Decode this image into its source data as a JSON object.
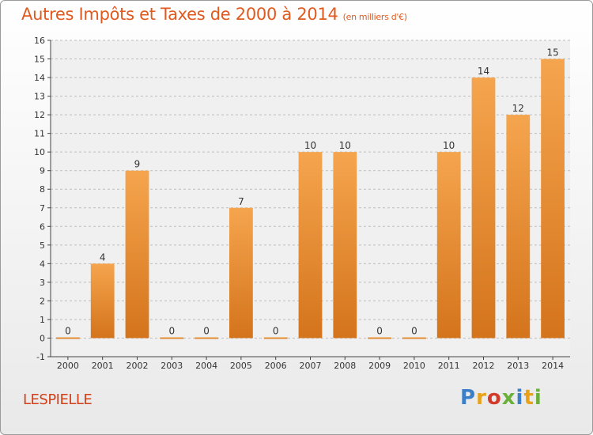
{
  "header": {
    "title": "Autres Impôts et Taxes de 2000 à 2014",
    "unit": "(en milliers d'€)"
  },
  "footer": {
    "commune": "LESPIELLE",
    "logo_letters": [
      "P",
      "r",
      "o",
      "x",
      "i",
      "t",
      "i"
    ]
  },
  "colors": {
    "title": "#e05a1f",
    "bar_top": "#f5a54e",
    "bar_bottom": "#d4741c",
    "grid": "#bdbdbd"
  },
  "chart_data": {
    "type": "bar",
    "categories": [
      "2000",
      "2001",
      "2002",
      "2003",
      "2004",
      "2005",
      "2006",
      "2007",
      "2008",
      "2009",
      "2010",
      "2011",
      "2012",
      "2013",
      "2014"
    ],
    "values": [
      0,
      4,
      9,
      0,
      0,
      7,
      0,
      10,
      10,
      0,
      0,
      10,
      14,
      12,
      15
    ],
    "data_labels": [
      "0",
      "4",
      "9",
      "0",
      "0",
      "7",
      "0",
      "10",
      "10",
      "0",
      "0",
      "10",
      "14",
      "12",
      "15"
    ],
    "ylim": [
      -1,
      16
    ],
    "yticks": [
      -1,
      0,
      1,
      2,
      3,
      4,
      5,
      6,
      7,
      8,
      9,
      10,
      11,
      12,
      13,
      14,
      15,
      16
    ],
    "grid": "horizontal dashed",
    "title": "Autres Impôts et Taxes de 2000 à 2014",
    "xlabel": "",
    "ylabel": ""
  }
}
